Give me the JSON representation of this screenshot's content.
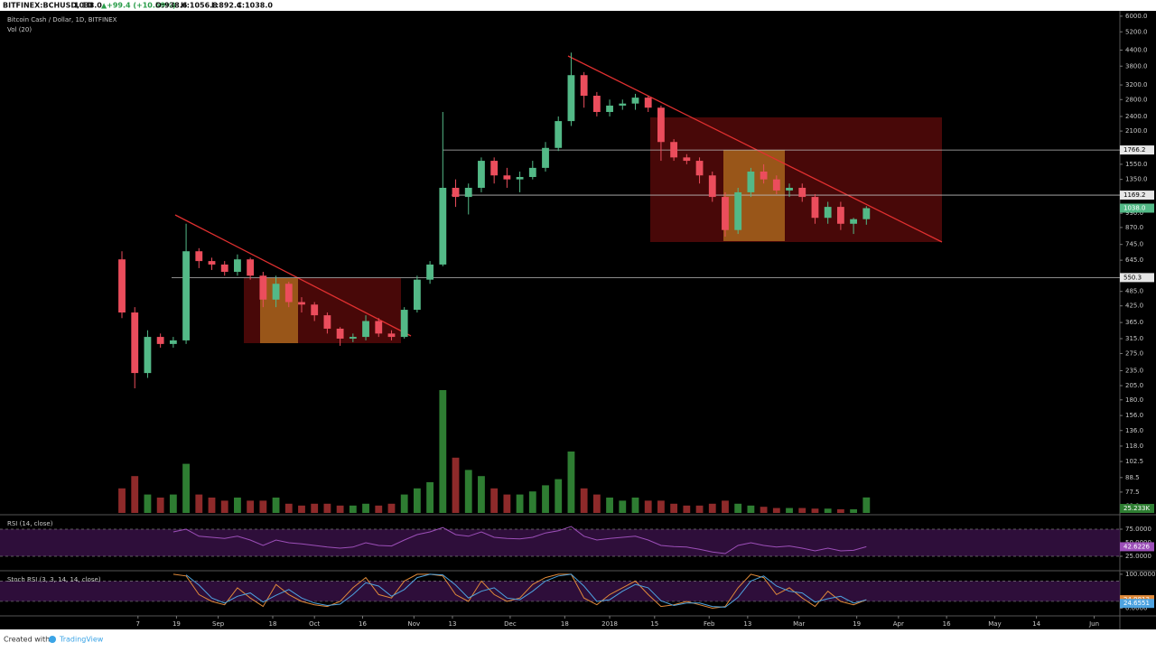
{
  "header": {
    "symbol": "BITFINEX:BCHUSD, 1D",
    "last": "1038.0",
    "change": "▲+99.4 (+10.59%)",
    "open": "O:938.6",
    "high": "H:1056.8",
    "low": "L:892.4",
    "close": "C:1038.0"
  },
  "footer": {
    "created": "Created with",
    "brand": "TradingView"
  },
  "chart_data": [
    {
      "type": "candlestick",
      "title": "Bitcoin Cash / Dollar, 1D, BITFINEX",
      "x": [
        0,
        4,
        8,
        12,
        16,
        20,
        24,
        28,
        32,
        36,
        40,
        44,
        48,
        52,
        56,
        60,
        64,
        68,
        72,
        76,
        80,
        84,
        88,
        92,
        96,
        100,
        104,
        108,
        112,
        116,
        120,
        124,
        128,
        132,
        136,
        140,
        144,
        148,
        152,
        156,
        160,
        164,
        168,
        172,
        176,
        180,
        184,
        188,
        192,
        196,
        200,
        204,
        208,
        212,
        216,
        220,
        224,
        228,
        232
      ],
      "open": [
        650,
        400,
        230,
        320,
        300,
        310,
        700,
        640,
        620,
        580,
        650,
        560,
        450,
        520,
        440,
        430,
        390,
        345,
        315,
        320,
        370,
        330,
        320,
        410,
        540,
        620,
        1250,
        1150,
        1250,
        1600,
        1400,
        1350,
        1380,
        1500,
        1800,
        2300,
        3500,
        2900,
        2500,
        2650,
        2700,
        2850,
        2600,
        1900,
        1650,
        1600,
        1400,
        1150,
        850,
        1200,
        1450,
        1350,
        1220,
        1250,
        1150,
        950,
        1050,
        900,
        938.6
      ],
      "high": [
        700,
        420,
        340,
        330,
        320,
        900,
        720,
        660,
        640,
        680,
        660,
        580,
        560,
        530,
        460,
        440,
        400,
        350,
        330,
        390,
        380,
        340,
        420,
        560,
        640,
        2500,
        1350,
        1300,
        1650,
        1650,
        1500,
        1450,
        1600,
        1900,
        2400,
        4300,
        3600,
        3000,
        2800,
        2800,
        2950,
        2900,
        2650,
        1950,
        1700,
        1650,
        1450,
        1200,
        1250,
        1500,
        1550,
        1400,
        1300,
        1300,
        1180,
        1100,
        1100,
        950,
        1056.8
      ],
      "low": [
        380,
        200,
        220,
        290,
        290,
        300,
        600,
        590,
        560,
        560,
        540,
        420,
        420,
        420,
        400,
        370,
        330,
        295,
        305,
        310,
        320,
        310,
        315,
        400,
        520,
        610,
        1050,
        980,
        1200,
        1300,
        1250,
        1200,
        1350,
        1450,
        1750,
        2200,
        2600,
        2400,
        2400,
        2550,
        2550,
        2500,
        1600,
        1600,
        1550,
        1300,
        1100,
        800,
        820,
        1150,
        1300,
        1180,
        1150,
        1100,
        900,
        900,
        850,
        820,
        892.4
      ],
      "close": [
        400,
        230,
        320,
        300,
        310,
        700,
        640,
        620,
        580,
        650,
        560,
        450,
        520,
        440,
        430,
        390,
        345,
        315,
        320,
        370,
        330,
        320,
        410,
        540,
        620,
        1250,
        1150,
        1250,
        1600,
        1400,
        1350,
        1380,
        1500,
        1800,
        2300,
        3500,
        2900,
        2500,
        2650,
        2700,
        2850,
        2600,
        1900,
        1650,
        1600,
        1400,
        1150,
        850,
        1200,
        1450,
        1350,
        1220,
        1250,
        1150,
        950,
        1050,
        900,
        938.6,
        1038
      ],
      "up_color": "#53b987",
      "down_color": "#eb4d5c",
      "price_tag": "1038.0",
      "log_scale": true,
      "xlim": [
        -38,
        311
      ],
      "xticks": [
        {
          "value": 5,
          "label": "7"
        },
        {
          "value": 17,
          "label": "19"
        },
        {
          "value": 30,
          "label": "Sep"
        },
        {
          "value": 47,
          "label": "18"
        },
        {
          "value": 60,
          "label": "Oct"
        },
        {
          "value": 75,
          "label": "16"
        },
        {
          "value": 91,
          "label": "Nov"
        },
        {
          "value": 103,
          "label": "13"
        },
        {
          "value": 121,
          "label": "Dec"
        },
        {
          "value": 138,
          "label": "18"
        },
        {
          "value": 152,
          "label": "2018"
        },
        {
          "value": 166,
          "label": "15"
        },
        {
          "value": 183,
          "label": "Feb"
        },
        {
          "value": 195,
          "label": "13"
        },
        {
          "value": 211,
          "label": "Mar"
        },
        {
          "value": 229,
          "label": "19"
        },
        {
          "value": 242,
          "label": "Apr"
        },
        {
          "value": 257,
          "label": "16"
        },
        {
          "value": 272,
          "label": "May"
        },
        {
          "value": 285,
          "label": "14"
        },
        {
          "value": 303,
          "label": "Jun"
        }
      ],
      "ylim": [
        63,
        6300
      ],
      "yticks": [
        {
          "value": 6000,
          "label": "6000.0"
        },
        {
          "value": 5200,
          "label": "5200.0"
        },
        {
          "value": 4400,
          "label": "4400.0"
        },
        {
          "value": 3800,
          "label": "3800.0"
        },
        {
          "value": 3200,
          "label": "3200.0"
        },
        {
          "value": 2800,
          "label": "2800.0"
        },
        {
          "value": 2400,
          "label": "2400.0"
        },
        {
          "value": 2100,
          "label": "2100.0"
        },
        {
          "value": 1550,
          "label": "1550.0"
        },
        {
          "value": 1350,
          "label": "1350.0"
        },
        {
          "value": 990,
          "label": "990.0"
        },
        {
          "value": 870,
          "label": "870.0"
        },
        {
          "value": 745,
          "label": "745.0"
        },
        {
          "value": 645,
          "label": "645.0"
        },
        {
          "value": 485,
          "label": "485.0"
        },
        {
          "value": 425,
          "label": "425.0"
        },
        {
          "value": 365,
          "label": "365.0"
        },
        {
          "value": 315,
          "label": "315.0"
        },
        {
          "value": 275,
          "label": "275.0"
        },
        {
          "value": 235,
          "label": "235.0"
        },
        {
          "value": 205,
          "label": "205.0"
        },
        {
          "value": 180,
          "label": "180.0"
        },
        {
          "value": 156,
          "label": "156.0"
        },
        {
          "value": 136,
          "label": "136.0"
        },
        {
          "value": 118,
          "label": "118.0"
        },
        {
          "value": 102.5,
          "label": "102.5"
        },
        {
          "value": 88.5,
          "label": "88.5"
        },
        {
          "value": 77.5,
          "label": "77.5"
        },
        {
          "value": 68,
          "label": "68.0"
        }
      ],
      "levels": [
        {
          "value": 1766.2,
          "label": "1766.2"
        },
        {
          "value": 1169.2,
          "label": "1169.2"
        },
        {
          "value": 550.3,
          "label": "550.3"
        }
      ]
    },
    {
      "type": "bar",
      "title": "Vol (20)",
      "values": [
        40,
        60,
        30,
        25,
        30,
        80,
        30,
        25,
        20,
        25,
        20,
        20,
        25,
        15,
        12,
        15,
        15,
        12,
        12,
        15,
        12,
        15,
        30,
        40,
        50,
        200,
        90,
        70,
        60,
        40,
        30,
        30,
        35,
        45,
        55,
        100,
        40,
        30,
        25,
        20,
        25,
        20,
        20,
        15,
        12,
        12,
        15,
        20,
        15,
        12,
        10,
        8,
        8,
        8,
        7,
        7,
        6,
        6,
        25.233
      ],
      "up_color": "#2e7d32",
      "down_color": "#8e2a2a",
      "ylim": [
        0,
        250
      ],
      "value_tag": "25.233K"
    },
    {
      "type": "line",
      "title": "RSI (14, close)",
      "ylim": [
        0,
        100
      ],
      "band": [
        25,
        75
      ],
      "band_color": "#3a1248",
      "yticks": [
        {
          "value": 75,
          "label": "75.0000"
        },
        {
          "value": 50,
          "label": "50.0000"
        },
        {
          "value": 25,
          "label": "25.0000"
        }
      ],
      "series": [
        {
          "color": "#9c4fb8",
          "last_label": "42.6226",
          "values": [
            null,
            null,
            null,
            null,
            70,
            75,
            62,
            60,
            58,
            62,
            55,
            45,
            55,
            50,
            48,
            45,
            42,
            40,
            42,
            50,
            45,
            44,
            55,
            65,
            70,
            78,
            65,
            62,
            70,
            60,
            58,
            57,
            60,
            68,
            72,
            80,
            62,
            55,
            58,
            60,
            62,
            55,
            45,
            43,
            42,
            38,
            33,
            30,
            45,
            50,
            45,
            42,
            44,
            40,
            35,
            40,
            35,
            36,
            42.6226
          ]
        }
      ]
    },
    {
      "type": "line",
      "title": "Stoch RSI (3, 3, 14, 14, close)",
      "ylim": [
        -20,
        105
      ],
      "band": [
        20,
        80
      ],
      "band_color": "#3a1248",
      "yticks": [
        {
          "value": 100,
          "label": "100.0000"
        },
        {
          "value": 0,
          "label": "0.0000"
        }
      ],
      "series": [
        {
          "color": "#e08a3a",
          "last_label": "24.9813",
          "values": [
            null,
            null,
            null,
            null,
            100,
            95,
            40,
            20,
            10,
            60,
            30,
            5,
            70,
            40,
            20,
            10,
            5,
            20,
            60,
            90,
            40,
            30,
            80,
            100,
            100,
            95,
            40,
            20,
            80,
            40,
            20,
            30,
            70,
            90,
            100,
            100,
            30,
            10,
            40,
            60,
            80,
            40,
            5,
            10,
            20,
            10,
            0,
            5,
            60,
            100,
            90,
            40,
            60,
            30,
            5,
            50,
            20,
            10,
            24.9813
          ]
        },
        {
          "color": "#4ea3e0",
          "last_label": "24.6551",
          "values": [
            null,
            null,
            null,
            null,
            null,
            98,
            68,
            30,
            15,
            35,
            45,
            18,
            38,
            55,
            30,
            15,
            8,
            12,
            40,
            75,
            65,
            35,
            55,
            90,
            100,
            98,
            68,
            30,
            50,
            60,
            30,
            25,
            50,
            80,
            95,
            100,
            65,
            20,
            25,
            50,
            70,
            60,
            22,
            8,
            15,
            15,
            5,
            3,
            32,
            80,
            95,
            65,
            50,
            45,
            18,
            28,
            35,
            15,
            24.6551
          ]
        }
      ]
    }
  ]
}
